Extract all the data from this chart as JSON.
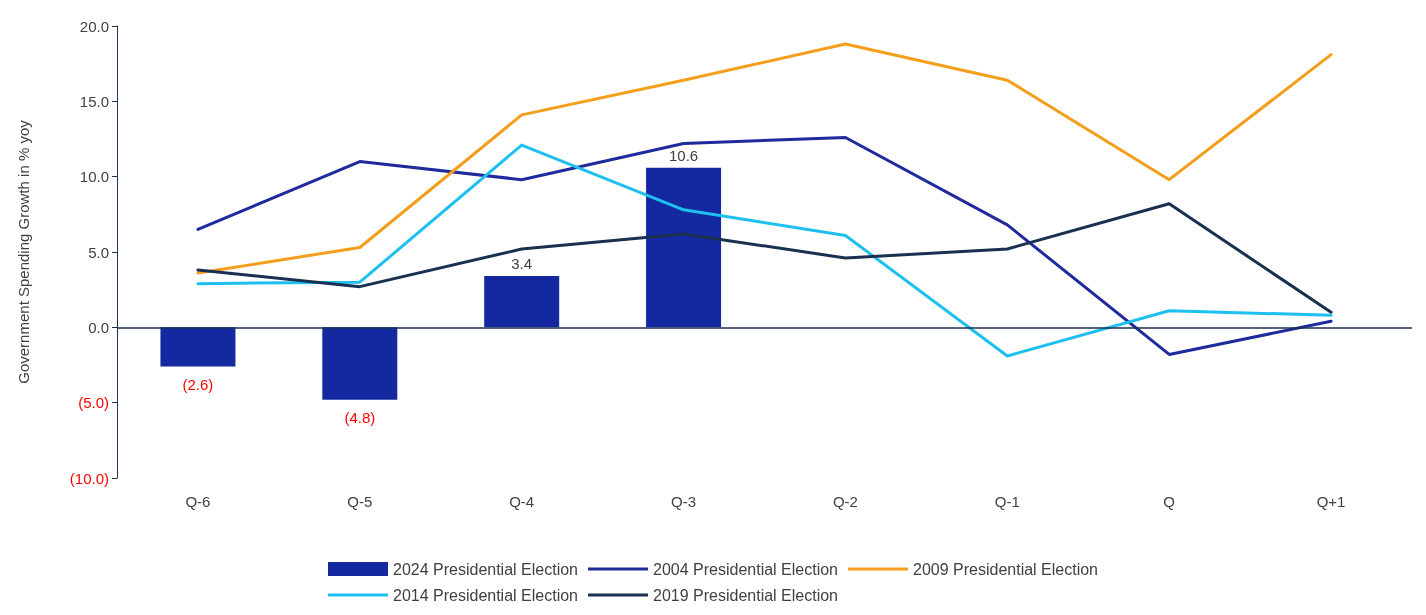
{
  "chart_data": {
    "type": "bar",
    "ylabel": "Government Spending Growth in % yoy",
    "categories": [
      "Q-6",
      "Q-5",
      "Q-4",
      "Q-3",
      "Q-2",
      "Q-1",
      "Q",
      "Q+1"
    ],
    "series": [
      {
        "name": "2024 Presidential Election",
        "color": "#1428a0",
        "values": [
          -2.6,
          -4.8,
          3.4,
          10.6,
          null,
          null,
          null,
          null
        ],
        "value_labels": [
          "(2.6)",
          "(4.8)",
          "3.4",
          "10.6",
          null,
          null,
          null,
          null
        ]
      },
      {
        "name": "2004 Presidential Election",
        "type": "line",
        "color": "#1f2a9c",
        "values": [
          6.5,
          11.0,
          9.8,
          12.2,
          12.6,
          6.8,
          -1.8,
          0.4
        ]
      },
      {
        "name": "2009 Presidential Election",
        "type": "line",
        "color": "#f59e1b",
        "values": [
          3.6,
          5.3,
          14.1,
          16.4,
          18.8,
          16.4,
          9.8,
          18.1
        ]
      },
      {
        "name": "2014 Presidential Election",
        "type": "line",
        "color": "#1ec0f0",
        "values": [
          2.9,
          3.0,
          12.1,
          7.8,
          6.1,
          -1.9,
          1.1,
          0.8
        ]
      },
      {
        "name": "2019 Presidential Election",
        "type": "line",
        "color": "#1a3050",
        "values": [
          3.8,
          2.7,
          5.2,
          6.2,
          4.6,
          5.2,
          8.2,
          1.0
        ]
      }
    ],
    "ylim": [
      -10,
      20
    ],
    "yticks": [
      {
        "value": -10,
        "label": "(10.0)"
      },
      {
        "value": -5,
        "label": "(5.0)"
      },
      {
        "value": 0,
        "label": "0.0"
      },
      {
        "value": 5,
        "label": "5.0"
      },
      {
        "value": 10,
        "label": "10.0"
      },
      {
        "value": 15,
        "label": "15.0"
      },
      {
        "value": 20,
        "label": "20.0"
      }
    ],
    "ref_lines": [
      {
        "axis": "y",
        "value": 0,
        "color": "#1a3050"
      }
    ],
    "grid": false,
    "legend": "bottom",
    "marker": "none",
    "line_style": "solid"
  }
}
